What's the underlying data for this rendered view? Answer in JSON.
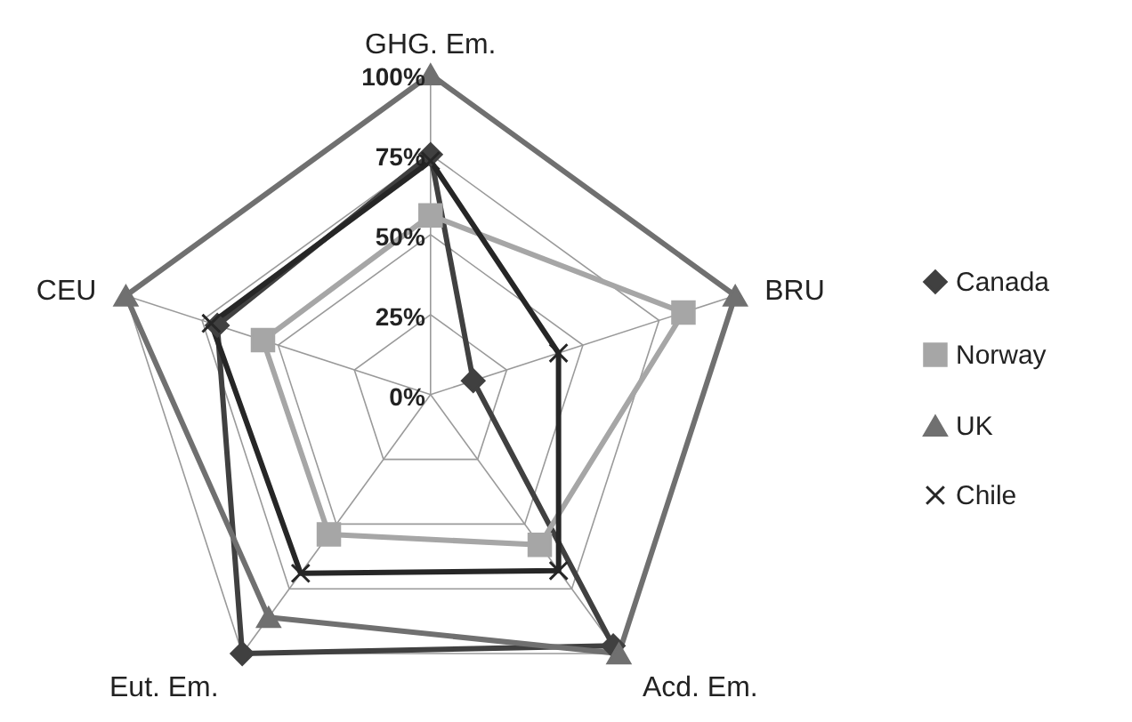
{
  "chart_data": {
    "type": "radar",
    "categories": [
      "GHG. Em.",
      "BRU",
      "Acd. Em.",
      "Eut. Em.",
      "CEU"
    ],
    "ylim": [
      0,
      100
    ],
    "yticks": [
      {
        "value": 0,
        "label": "0%"
      },
      {
        "value": 25,
        "label": "25%"
      },
      {
        "value": 50,
        "label": "50%"
      },
      {
        "value": 75,
        "label": "75%"
      },
      {
        "value": 100,
        "label": "100%"
      }
    ],
    "grid": true,
    "legend": "right",
    "series": [
      {
        "name": "Canada",
        "color": "#404040",
        "marker": "diamond",
        "values": [
          75,
          14,
          97,
          100,
          70
        ]
      },
      {
        "name": "Norway",
        "color": "#a6a6a6",
        "marker": "square",
        "values": [
          56,
          83,
          58,
          54,
          55
        ]
      },
      {
        "name": "UK",
        "color": "#707070",
        "marker": "triangle",
        "values": [
          100,
          100,
          100,
          86,
          100
        ]
      },
      {
        "name": "Chile",
        "color": "#262626",
        "marker": "cross",
        "values": [
          73,
          42,
          68,
          69,
          72
        ]
      }
    ]
  }
}
